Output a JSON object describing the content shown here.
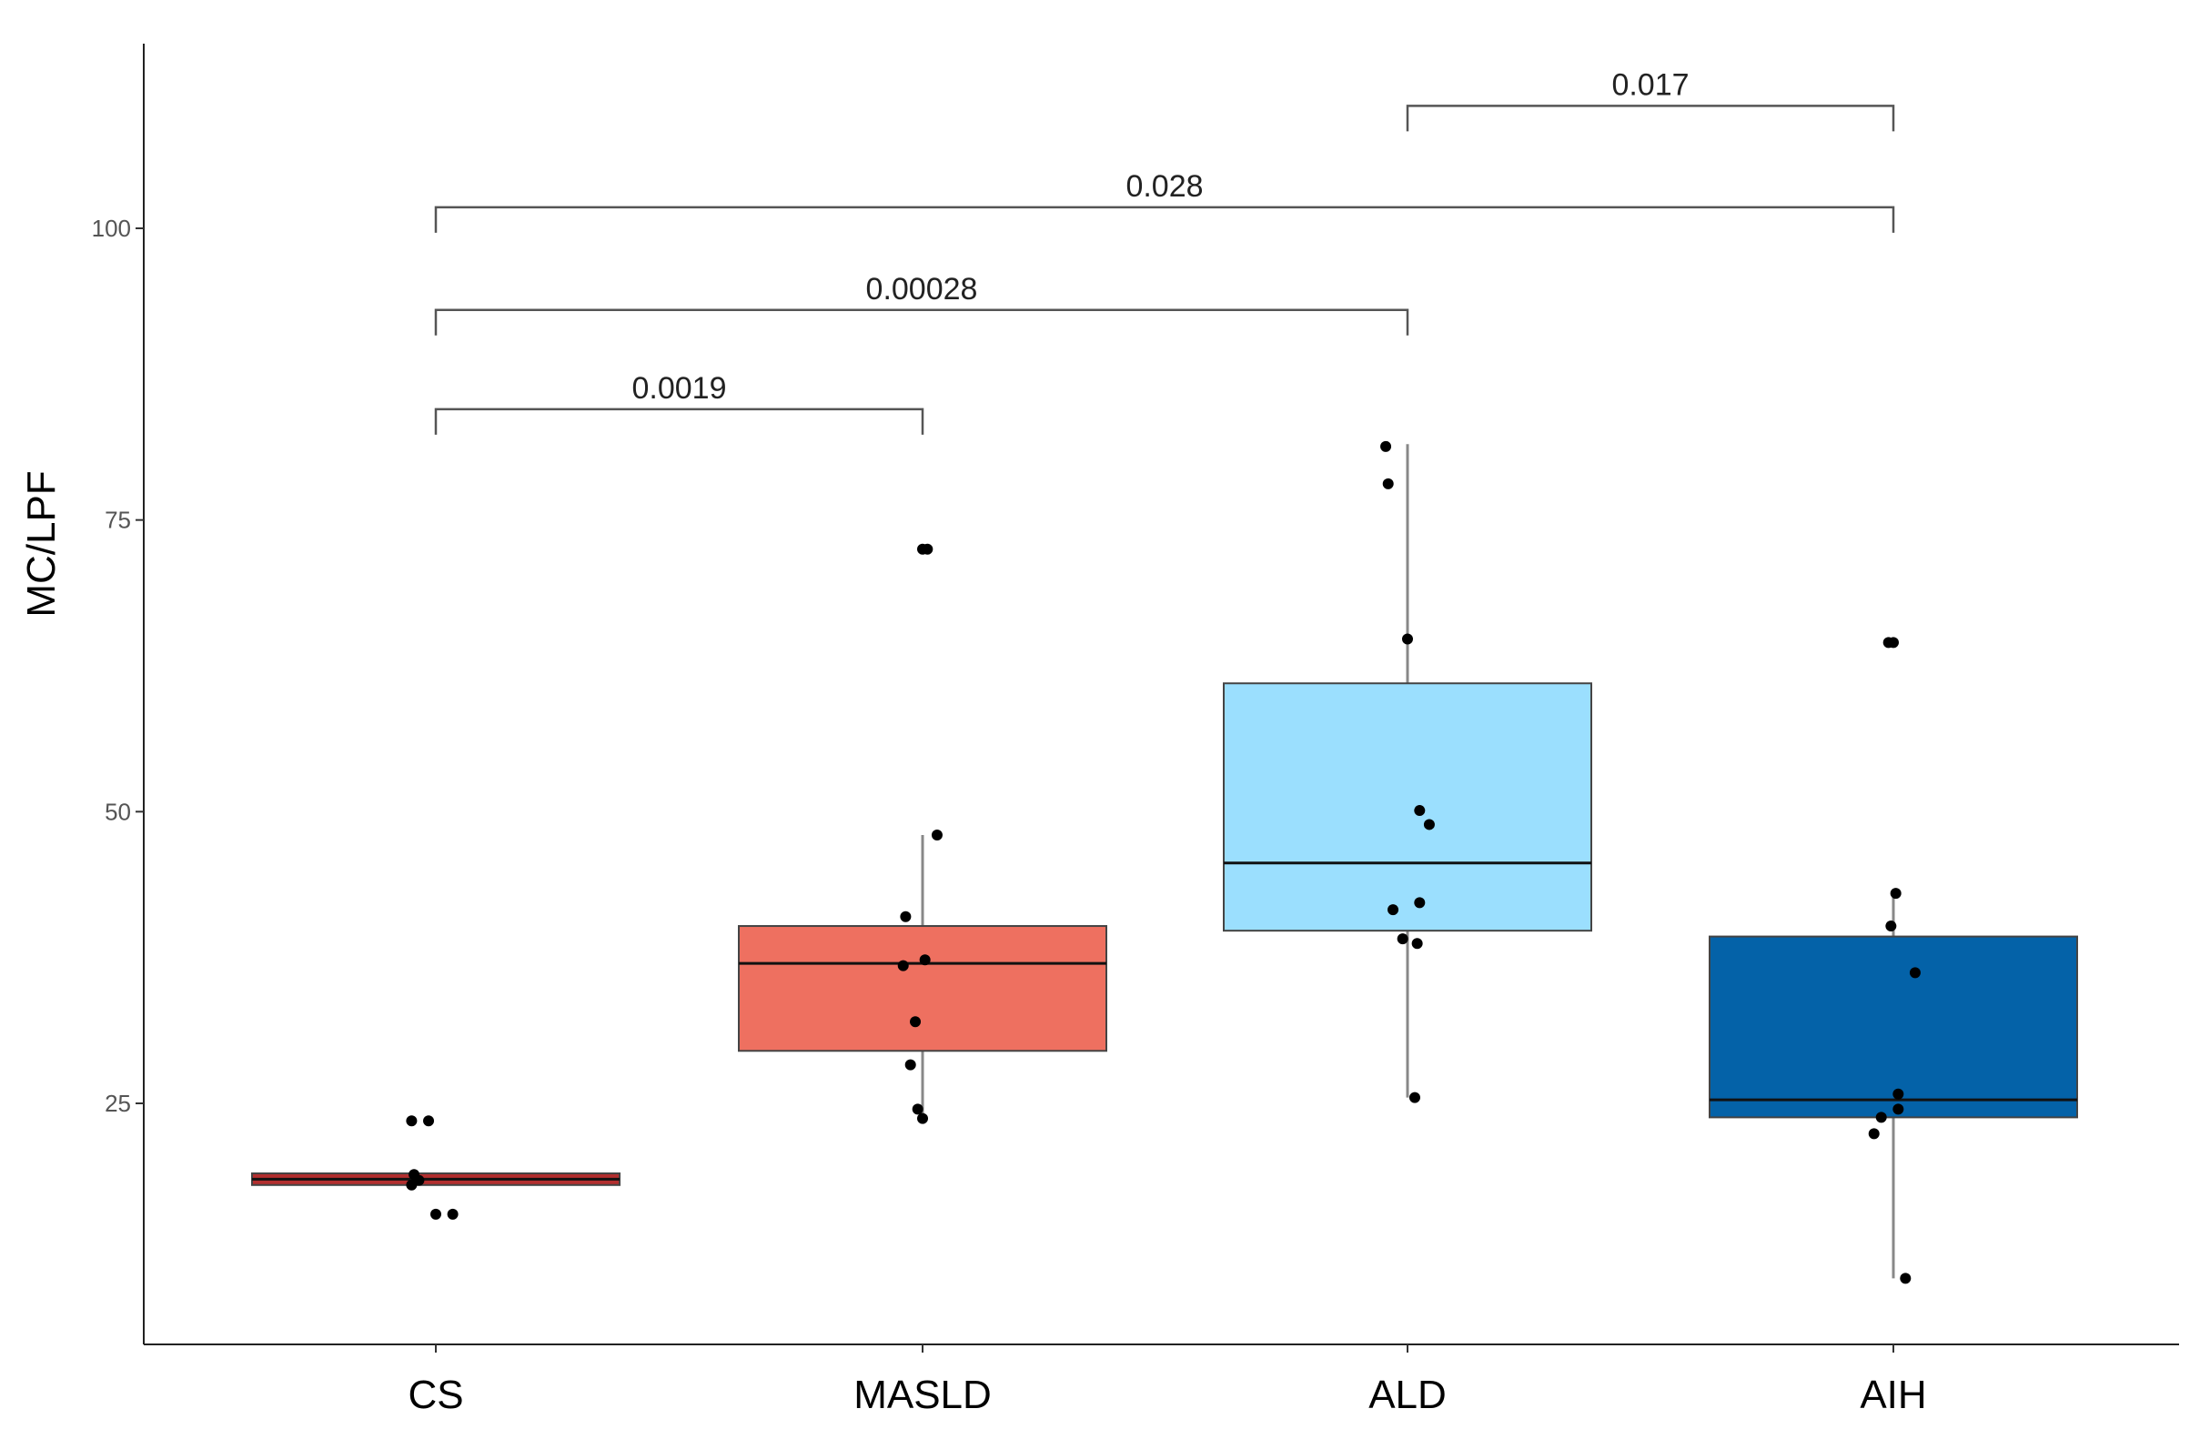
{
  "chart_data": {
    "type": "boxplot",
    "title": "",
    "xlabel": "",
    "ylabel": "MC/LPF",
    "ylim": [
      5,
      116
    ],
    "yticks": [
      25,
      50,
      75,
      100
    ],
    "yticklabels": [
      "25",
      "50",
      "75",
      "100"
    ],
    "grid": false,
    "categories": [
      "CS",
      "MASLD",
      "ALD",
      "AIH"
    ],
    "boxes": [
      {
        "name": "CS",
        "color": "#B22E2E",
        "whisker_low": 18.0,
        "q1": 18.0,
        "median": 18.5,
        "q3": 19.0,
        "whisker_high": 19.0,
        "points": [
          {
            "x_jitter": -0.1,
            "y": 23.5
          },
          {
            "x_jitter": -0.03,
            "y": 23.5
          },
          {
            "x_jitter": -0.09,
            "y": 18.9
          },
          {
            "x_jitter": -0.07,
            "y": 18.4
          },
          {
            "x_jitter": -0.1,
            "y": 18.0
          },
          {
            "x_jitter": 0.0,
            "y": 15.5
          },
          {
            "x_jitter": 0.07,
            "y": 15.5
          }
        ]
      },
      {
        "name": "MASLD",
        "color": "#EE7060",
        "whisker_low": 23.7,
        "q1": 29.5,
        "median": 37.0,
        "q3": 40.2,
        "whisker_high": 48.0,
        "points": [
          {
            "x_jitter": 0.0,
            "y": 72.5
          },
          {
            "x_jitter": 0.02,
            "y": 72.5
          },
          {
            "x_jitter": 0.06,
            "y": 48.0
          },
          {
            "x_jitter": -0.07,
            "y": 41.0
          },
          {
            "x_jitter": -0.08,
            "y": 36.8
          },
          {
            "x_jitter": 0.01,
            "y": 37.3
          },
          {
            "x_jitter": -0.03,
            "y": 32.0
          },
          {
            "x_jitter": -0.05,
            "y": 28.3
          },
          {
            "x_jitter": -0.02,
            "y": 24.5
          },
          {
            "x_jitter": 0.0,
            "y": 23.7
          }
        ]
      },
      {
        "name": "ALD",
        "color": "#9BDFFE",
        "whisker_low": 25.5,
        "q1": 39.8,
        "median": 45.6,
        "q3": 61.0,
        "whisker_high": 81.5,
        "points": [
          {
            "x_jitter": -0.09,
            "y": 81.3
          },
          {
            "x_jitter": -0.08,
            "y": 78.1
          },
          {
            "x_jitter": 0.0,
            "y": 64.8
          },
          {
            "x_jitter": 0.05,
            "y": 50.1
          },
          {
            "x_jitter": 0.09,
            "y": 48.9
          },
          {
            "x_jitter": 0.05,
            "y": 42.2
          },
          {
            "x_jitter": -0.06,
            "y": 41.6
          },
          {
            "x_jitter": -0.02,
            "y": 39.1
          },
          {
            "x_jitter": 0.04,
            "y": 38.7
          },
          {
            "x_jitter": 0.03,
            "y": 25.5
          }
        ]
      },
      {
        "name": "AIH",
        "color": "#0462A8",
        "whisker_low": 10.0,
        "q1": 23.8,
        "median": 25.3,
        "q3": 39.3,
        "whisker_high": 43.0,
        "points": [
          {
            "x_jitter": -0.02,
            "y": 64.5
          },
          {
            "x_jitter": 0.0,
            "y": 64.5
          },
          {
            "x_jitter": 0.01,
            "y": 43.0
          },
          {
            "x_jitter": -0.01,
            "y": 40.2
          },
          {
            "x_jitter": 0.09,
            "y": 36.2
          },
          {
            "x_jitter": 0.02,
            "y": 25.8
          },
          {
            "x_jitter": 0.02,
            "y": 24.5
          },
          {
            "x_jitter": -0.05,
            "y": 23.8
          },
          {
            "x_jitter": -0.08,
            "y": 22.4
          },
          {
            "x_jitter": 0.05,
            "y": 10.0
          }
        ]
      }
    ],
    "comparisons": [
      {
        "from": "CS",
        "to": "MASLD",
        "y": 84.5,
        "label": "0.0019"
      },
      {
        "from": "CS",
        "to": "ALD",
        "y": 93.0,
        "label": "0.00028"
      },
      {
        "from": "CS",
        "to": "AIH",
        "y": 101.8,
        "label": "0.028"
      },
      {
        "from": "ALD",
        "to": "AIH",
        "y": 110.5,
        "label": "0.017"
      }
    ]
  }
}
